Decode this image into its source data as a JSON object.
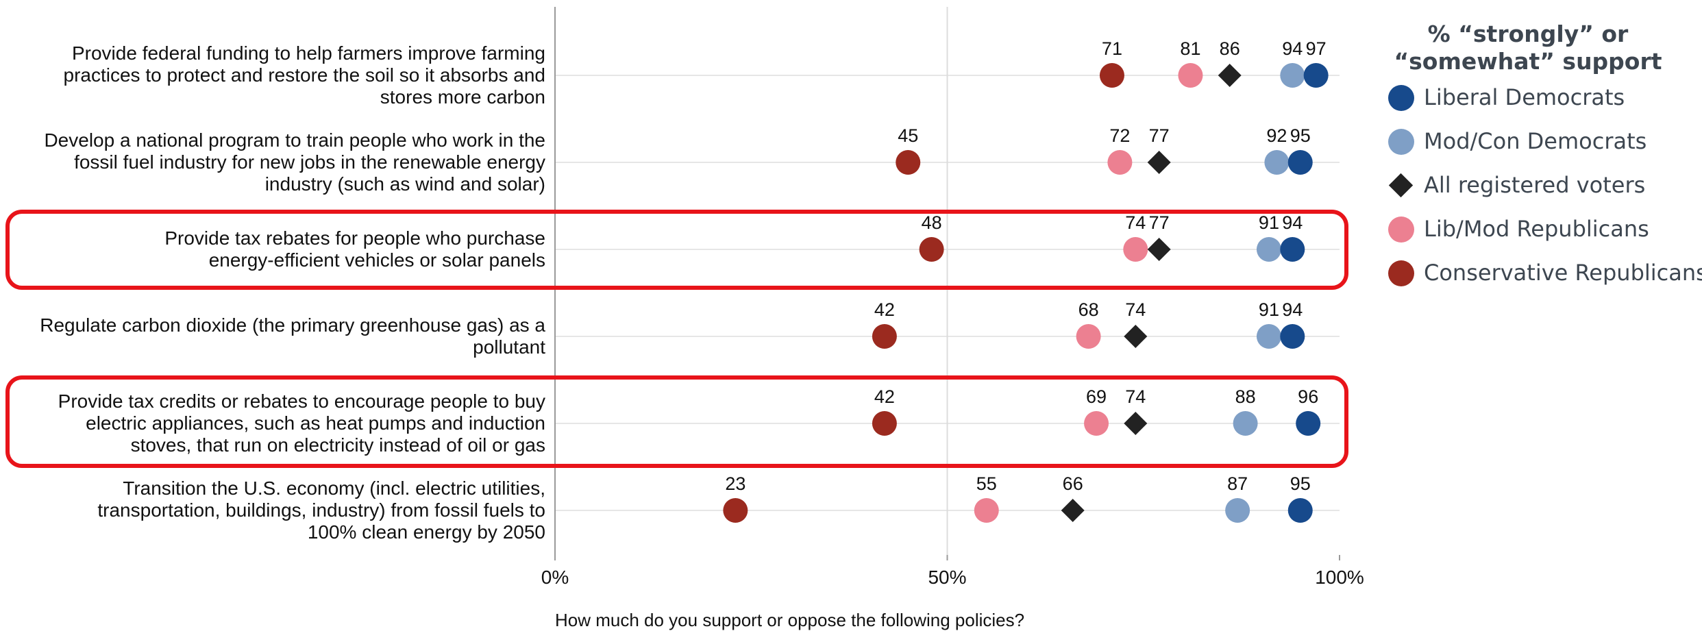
{
  "chart_data": {
    "type": "scatter",
    "xlabel": "How much do you support or oppose the following policies?",
    "xlim": [
      0,
      100
    ],
    "x_ticks": [
      "0%",
      "50%",
      "100%"
    ],
    "categories": [
      "Provide federal funding to help farmers improve farming practices to protect and restore the soil so it absorbs and stores more carbon",
      "Develop a national program to train people who work in the fossil fuel industry for new jobs in the renewable energy industry (such as wind and solar)",
      "Provide tax rebates for people who purchase energy-efficient vehicles or solar panels",
      "Regulate carbon dioxide (the primary greenhouse gas) as a pollutant",
      "Provide tax credits or rebates to encourage people to buy electric appliances, such as heat pumps and induction stoves, that run on electricity instead of oil or gas",
      "Transition the U.S. economy (incl. electric utilities, transportation, buildings, industry) from fossil fuels to 100% clean energy by 2050"
    ],
    "label_lines": [
      [
        "Provide federal funding to help farmers improve farming",
        "practices to protect and restore the soil so it absorbs and",
        "stores more carbon"
      ],
      [
        "Develop a national program to train people who work in the",
        "fossil fuel industry for new jobs in the renewable energy",
        "industry (such as wind and solar)"
      ],
      [
        "Provide tax rebates for people who purchase",
        "energy-efficient vehicles or solar panels"
      ],
      [
        "Regulate carbon dioxide (the primary greenhouse gas) as a",
        "pollutant"
      ],
      [
        "Provide tax credits or rebates to encourage people to buy",
        "electric appliances, such as heat pumps and induction",
        "stoves, that run on electricity instead of oil or gas"
      ],
      [
        "Transition the U.S. economy (incl. electric utilities,",
        "transportation, buildings, industry) from fossil fuels to",
        "100% clean energy by 2050"
      ]
    ],
    "highlighted": [
      2,
      4
    ],
    "series": [
      {
        "name": "Liberal Democrats",
        "marker": "circle",
        "color": "#174a8c",
        "values": [
          97,
          95,
          94,
          94,
          96,
          95
        ]
      },
      {
        "name": "Mod/Con Democrats",
        "marker": "circle",
        "color": "#7f9fc6",
        "values": [
          94,
          92,
          91,
          91,
          88,
          87
        ]
      },
      {
        "name": "All registered voters",
        "marker": "diamond",
        "color": "#222222",
        "values": [
          86,
          77,
          77,
          74,
          74,
          66
        ]
      },
      {
        "name": "Lib/Mod Republicans",
        "marker": "circle",
        "color": "#ec8091",
        "values": [
          81,
          72,
          74,
          68,
          69,
          55
        ]
      },
      {
        "name": "Conservative Republicans",
        "marker": "circle",
        "color": "#9b2a1f",
        "values": [
          71,
          45,
          48,
          42,
          42,
          23
        ]
      }
    ],
    "legend": {
      "title_lines": [
        "% “strongly” or",
        "“somewhat” support"
      ],
      "position": "right"
    },
    "grid": true
  }
}
